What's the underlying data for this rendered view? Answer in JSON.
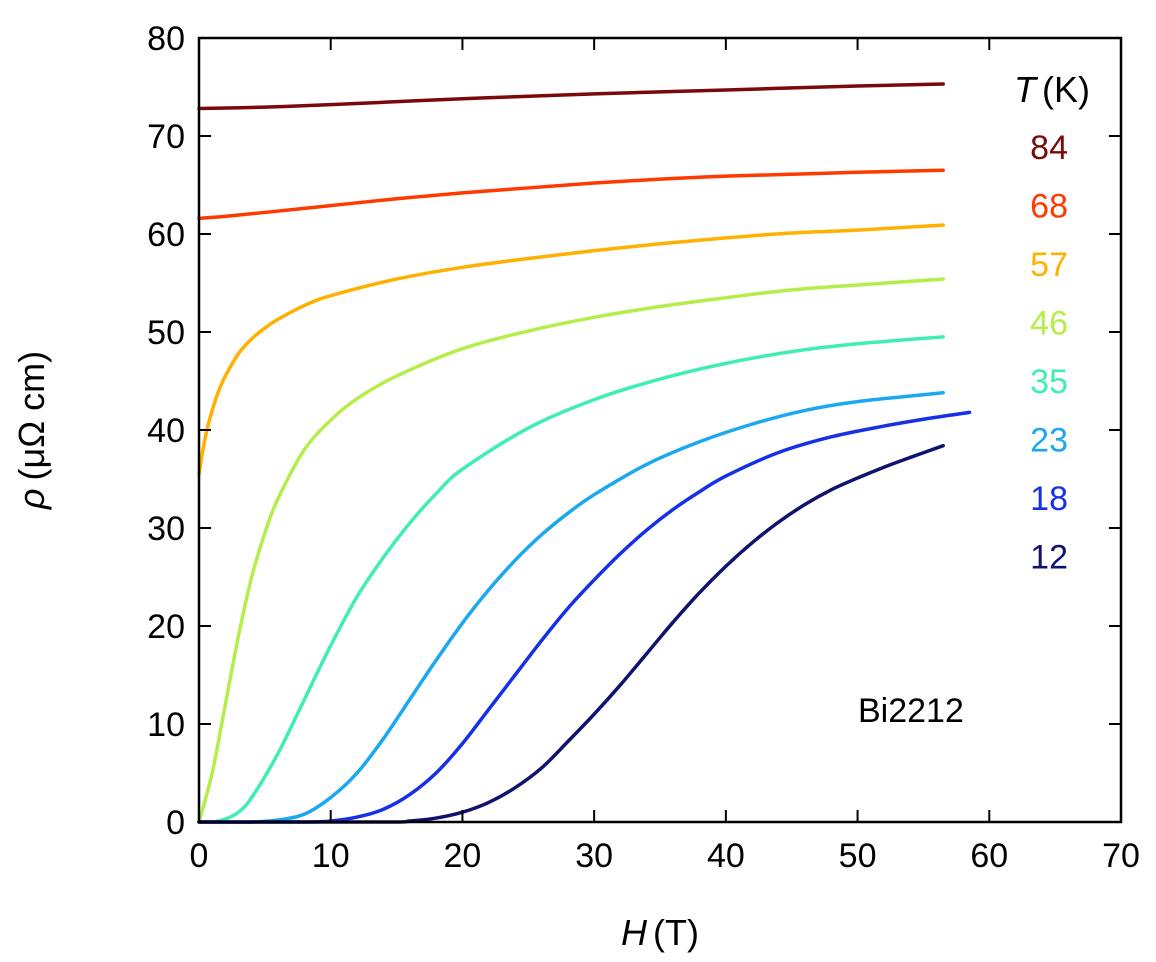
{
  "chart_data": {
    "type": "line",
    "xlabel": {
      "var": "H",
      "unit": "(T)"
    },
    "ylabel": {
      "var": "ρ",
      "unit": "(μΩ cm)"
    },
    "xlim": [
      0,
      70
    ],
    "ylim": [
      0,
      80
    ],
    "xticks": [
      0,
      10,
      20,
      30,
      40,
      50,
      60,
      70
    ],
    "yticks": [
      0,
      10,
      20,
      30,
      40,
      50,
      60,
      70,
      80
    ],
    "grid": false,
    "legend": {
      "placement": "right",
      "title_var": "T",
      "title_unit": "(K)",
      "entries": [
        "84",
        "68",
        "57",
        "46",
        "35",
        "23",
        "18",
        "12"
      ]
    },
    "annotation": "Bi2212",
    "series": [
      {
        "name": "84",
        "color": "#7a0a0a",
        "x": [
          0,
          5,
          10,
          20,
          30,
          40,
          50,
          56.5
        ],
        "y": [
          72.8,
          72.95,
          73.2,
          73.8,
          74.3,
          74.7,
          75.1,
          75.3
        ]
      },
      {
        "name": "68",
        "color": "#ff3a00",
        "x": [
          0,
          2,
          5,
          10,
          15,
          20,
          25,
          30,
          35,
          40,
          45,
          50,
          56.5
        ],
        "y": [
          61.6,
          61.8,
          62.2,
          62.9,
          63.6,
          64.2,
          64.7,
          65.2,
          65.6,
          65.9,
          66.1,
          66.3,
          66.5
        ]
      },
      {
        "name": "57",
        "color": "#ffb000",
        "x": [
          0,
          0.3,
          0.6,
          1,
          1.5,
          2,
          3,
          4,
          5,
          6,
          8,
          10,
          15,
          20,
          25,
          30,
          35,
          40,
          45,
          50,
          56.5
        ],
        "y": [
          35.5,
          38,
          40,
          42,
          44,
          45.5,
          47.8,
          49.3,
          50.4,
          51.3,
          52.7,
          53.7,
          55.4,
          56.6,
          57.5,
          58.3,
          59,
          59.6,
          60.1,
          60.4,
          60.9
        ]
      },
      {
        "name": "46",
        "color": "#b5ee4a",
        "x": [
          0,
          1,
          2,
          3,
          4,
          5,
          6,
          8,
          10,
          12,
          15,
          20,
          25,
          30,
          35,
          40,
          45,
          50,
          56.5
        ],
        "y": [
          0,
          5,
          12,
          19,
          25,
          29.5,
          33,
          38,
          41,
          43.2,
          45.5,
          48.3,
          50.1,
          51.5,
          52.6,
          53.5,
          54.3,
          54.8,
          55.4
        ]
      },
      {
        "name": "35",
        "color": "#40eeb0",
        "x": [
          0,
          1,
          2,
          3,
          4,
          6,
          8,
          10,
          12,
          14,
          16,
          18,
          20,
          25,
          30,
          35,
          40,
          45,
          50,
          56.5
        ],
        "y": [
          0,
          0,
          0.3,
          1,
          2.5,
          7,
          12.5,
          18,
          23,
          27,
          30.5,
          33.5,
          36,
          40.2,
          43.1,
          45.2,
          46.8,
          48,
          48.8,
          49.5
        ]
      },
      {
        "name": "23",
        "color": "#1aa8f0",
        "x": [
          0,
          4,
          6,
          8,
          10,
          12,
          14,
          16,
          18,
          20,
          22,
          24,
          26,
          28,
          30,
          34,
          38,
          42,
          46,
          50,
          56.5
        ],
        "y": [
          0,
          0,
          0.2,
          0.8,
          2.5,
          5,
          8.5,
          12.5,
          16.5,
          20.3,
          23.7,
          26.7,
          29.3,
          31.5,
          33.4,
          36.5,
          38.8,
          40.6,
          42,
          42.9,
          43.8
        ]
      },
      {
        "name": "18",
        "color": "#1530e6",
        "x": [
          0,
          8,
          10,
          12,
          14,
          16,
          18,
          20,
          22,
          24,
          26,
          28,
          30,
          32,
          34,
          36,
          38,
          40,
          44,
          48,
          52,
          55,
          58.5
        ],
        "y": [
          0,
          0,
          0.1,
          0.5,
          1.3,
          2.8,
          5,
          8,
          11.5,
          15,
          18.5,
          21.8,
          24.7,
          27.4,
          29.8,
          31.9,
          33.7,
          35.3,
          37.7,
          39.3,
          40.4,
          41.1,
          41.8
        ]
      },
      {
        "name": "12",
        "color": "#10126e",
        "x": [
          0,
          14,
          16,
          18,
          20,
          22,
          24,
          26,
          28,
          30,
          32,
          34,
          36,
          38,
          40,
          42,
          44,
          46,
          48,
          50,
          52,
          54,
          56.5
        ],
        "y": [
          0,
          0,
          0.1,
          0.4,
          1,
          2,
          3.5,
          5.5,
          8.2,
          11,
          14,
          17.2,
          20.4,
          23.4,
          26.1,
          28.5,
          30.6,
          32.4,
          33.9,
          35.1,
          36.2,
          37.2,
          38.4
        ]
      }
    ]
  }
}
